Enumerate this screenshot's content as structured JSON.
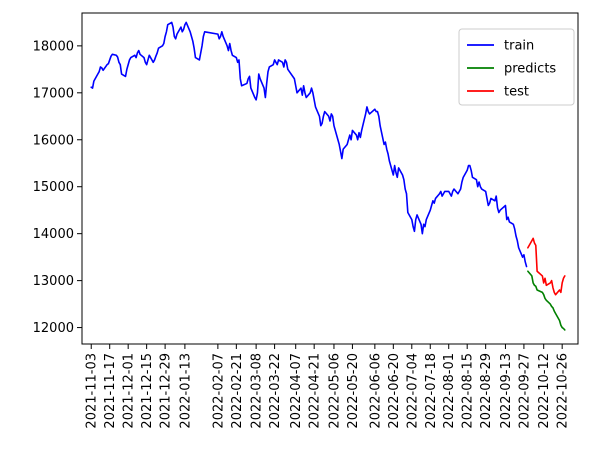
{
  "chart_data": {
    "type": "line",
    "title": "",
    "xlabel": "",
    "ylabel": "",
    "ylim": [
      11650,
      18700
    ],
    "xlim": [
      "2021-10-27",
      "2022-11-07"
    ],
    "grid": false,
    "legend": {
      "placement": "top-right",
      "entries": [
        "train",
        "predicts",
        "test"
      ]
    },
    "yticks": [
      12000,
      13000,
      14000,
      15000,
      16000,
      17000,
      18000
    ],
    "xticks": [
      "2021-11-03",
      "2021-11-17",
      "2021-12-01",
      "2021-12-15",
      "2021-12-29",
      "2022-01-13",
      "2022-02-07",
      "2022-02-21",
      "2022-03-08",
      "2022-03-22",
      "2022-04-07",
      "2022-04-21",
      "2022-05-06",
      "2022-05-20",
      "2022-06-06",
      "2022-06-20",
      "2022-07-04",
      "2022-07-18",
      "2022-08-01",
      "2022-08-15",
      "2022-08-29",
      "2022-09-13",
      "2022-09-27",
      "2022-10-12",
      "2022-10-26"
    ],
    "series": [
      {
        "name": "train",
        "color": "#0000ff",
        "points": [
          [
            "2021-11-03",
            17120
          ],
          [
            "2021-11-04",
            17100
          ],
          [
            "2021-11-05",
            17250
          ],
          [
            "2021-11-08",
            17400
          ],
          [
            "2021-11-09",
            17450
          ],
          [
            "2021-11-10",
            17550
          ],
          [
            "2021-11-11",
            17530
          ],
          [
            "2021-11-12",
            17480
          ],
          [
            "2021-11-15",
            17600
          ],
          [
            "2021-11-16",
            17620
          ],
          [
            "2021-11-17",
            17700
          ],
          [
            "2021-11-18",
            17780
          ],
          [
            "2021-11-19",
            17820
          ],
          [
            "2021-11-22",
            17800
          ],
          [
            "2021-11-23",
            17760
          ],
          [
            "2021-11-24",
            17650
          ],
          [
            "2021-11-25",
            17600
          ],
          [
            "2021-11-26",
            17400
          ],
          [
            "2021-11-29",
            17350
          ],
          [
            "2021-11-30",
            17500
          ],
          [
            "2021-12-01",
            17600
          ],
          [
            "2021-12-02",
            17700
          ],
          [
            "2021-12-03",
            17750
          ],
          [
            "2021-12-06",
            17800
          ],
          [
            "2021-12-07",
            17750
          ],
          [
            "2021-12-08",
            17850
          ],
          [
            "2021-12-09",
            17900
          ],
          [
            "2021-12-10",
            17820
          ],
          [
            "2021-12-13",
            17750
          ],
          [
            "2021-12-14",
            17650
          ],
          [
            "2021-12-15",
            17600
          ],
          [
            "2021-12-16",
            17700
          ],
          [
            "2021-12-17",
            17800
          ],
          [
            "2021-12-20",
            17650
          ],
          [
            "2021-12-21",
            17700
          ],
          [
            "2021-12-22",
            17780
          ],
          [
            "2021-12-23",
            17850
          ],
          [
            "2021-12-24",
            17950
          ],
          [
            "2021-12-27",
            18000
          ],
          [
            "2021-12-28",
            18050
          ],
          [
            "2021-12-29",
            18200
          ],
          [
            "2021-12-30",
            18300
          ],
          [
            "2021-12-31",
            18450
          ],
          [
            "2022-01-03",
            18500
          ],
          [
            "2022-01-04",
            18400
          ],
          [
            "2022-01-05",
            18200
          ],
          [
            "2022-01-06",
            18150
          ],
          [
            "2022-01-07",
            18250
          ],
          [
            "2022-01-10",
            18400
          ],
          [
            "2022-01-11",
            18300
          ],
          [
            "2022-01-12",
            18350
          ],
          [
            "2022-01-13",
            18450
          ],
          [
            "2022-01-14",
            18500
          ],
          [
            "2022-01-17",
            18300
          ],
          [
            "2022-01-18",
            18200
          ],
          [
            "2022-01-19",
            18100
          ],
          [
            "2022-01-20",
            17950
          ],
          [
            "2022-01-21",
            17750
          ],
          [
            "2022-01-24",
            17700
          ],
          [
            "2022-01-25",
            17850
          ],
          [
            "2022-01-26",
            18000
          ],
          [
            "2022-01-27",
            18200
          ],
          [
            "2022-01-28",
            18300
          ],
          [
            "2022-02-07",
            18250
          ],
          [
            "2022-02-08",
            18150
          ],
          [
            "2022-02-09",
            18200
          ],
          [
            "2022-02-10",
            18300
          ],
          [
            "2022-02-11",
            18200
          ],
          [
            "2022-02-14",
            18000
          ],
          [
            "2022-02-15",
            17900
          ],
          [
            "2022-02-16",
            18050
          ],
          [
            "2022-02-17",
            17900
          ],
          [
            "2022-02-18",
            17800
          ],
          [
            "2022-02-21",
            17750
          ],
          [
            "2022-02-22",
            17650
          ],
          [
            "2022-02-23",
            17700
          ],
          [
            "2022-02-24",
            17300
          ],
          [
            "2022-02-25",
            17150
          ],
          [
            "2022-03-01",
            17200
          ],
          [
            "2022-03-02",
            17300
          ],
          [
            "2022-03-03",
            17350
          ],
          [
            "2022-03-04",
            17100
          ],
          [
            "2022-03-07",
            16900
          ],
          [
            "2022-03-08",
            16850
          ],
          [
            "2022-03-09",
            17000
          ],
          [
            "2022-03-10",
            17400
          ],
          [
            "2022-03-11",
            17300
          ],
          [
            "2022-03-14",
            17100
          ],
          [
            "2022-03-15",
            16900
          ],
          [
            "2022-03-16",
            17200
          ],
          [
            "2022-03-17",
            17450
          ],
          [
            "2022-03-18",
            17550
          ],
          [
            "2022-03-21",
            17600
          ],
          [
            "2022-03-22",
            17700
          ],
          [
            "2022-03-23",
            17650
          ],
          [
            "2022-03-24",
            17600
          ],
          [
            "2022-03-25",
            17700
          ],
          [
            "2022-03-28",
            17650
          ],
          [
            "2022-03-29",
            17550
          ],
          [
            "2022-03-30",
            17700
          ],
          [
            "2022-03-31",
            17650
          ],
          [
            "2022-04-01",
            17500
          ],
          [
            "2022-04-06",
            17300
          ],
          [
            "2022-04-07",
            17150
          ],
          [
            "2022-04-08",
            17000
          ],
          [
            "2022-04-11",
            17100
          ],
          [
            "2022-04-12",
            16950
          ],
          [
            "2022-04-13",
            17150
          ],
          [
            "2022-04-14",
            17000
          ],
          [
            "2022-04-15",
            16900
          ],
          [
            "2022-04-18",
            17000
          ],
          [
            "2022-04-19",
            17100
          ],
          [
            "2022-04-20",
            17000
          ],
          [
            "2022-04-21",
            16850
          ],
          [
            "2022-04-22",
            16700
          ],
          [
            "2022-04-25",
            16500
          ],
          [
            "2022-04-26",
            16300
          ],
          [
            "2022-04-27",
            16350
          ],
          [
            "2022-04-28",
            16500
          ],
          [
            "2022-04-29",
            16600
          ],
          [
            "2022-05-02",
            16500
          ],
          [
            "2022-05-03",
            16400
          ],
          [
            "2022-05-04",
            16550
          ],
          [
            "2022-05-05",
            16500
          ],
          [
            "2022-05-06",
            16300
          ],
          [
            "2022-05-09",
            16000
          ],
          [
            "2022-05-10",
            15900
          ],
          [
            "2022-05-11",
            15750
          ],
          [
            "2022-05-12",
            15600
          ],
          [
            "2022-05-13",
            15800
          ],
          [
            "2022-05-16",
            15900
          ],
          [
            "2022-05-17",
            16000
          ],
          [
            "2022-05-18",
            16100
          ],
          [
            "2022-05-19",
            16000
          ],
          [
            "2022-05-20",
            16200
          ],
          [
            "2022-05-23",
            16100
          ],
          [
            "2022-05-24",
            16000
          ],
          [
            "2022-05-25",
            16150
          ],
          [
            "2022-05-26",
            16050
          ],
          [
            "2022-05-27",
            16200
          ],
          [
            "2022-05-30",
            16550
          ],
          [
            "2022-05-31",
            16700
          ],
          [
            "2022-06-01",
            16600
          ],
          [
            "2022-06-02",
            16550
          ],
          [
            "2022-06-06",
            16650
          ],
          [
            "2022-06-07",
            16600
          ],
          [
            "2022-06-08",
            16600
          ],
          [
            "2022-06-09",
            16500
          ],
          [
            "2022-06-10",
            16300
          ],
          [
            "2022-06-13",
            15900
          ],
          [
            "2022-06-14",
            15950
          ],
          [
            "2022-06-15",
            15800
          ],
          [
            "2022-06-16",
            15700
          ],
          [
            "2022-06-17",
            15550
          ],
          [
            "2022-06-20",
            15250
          ],
          [
            "2022-06-21",
            15450
          ],
          [
            "2022-06-22",
            15300
          ],
          [
            "2022-06-23",
            15200
          ],
          [
            "2022-06-24",
            15400
          ],
          [
            "2022-06-27",
            15250
          ],
          [
            "2022-06-28",
            15150
          ],
          [
            "2022-06-29",
            14950
          ],
          [
            "2022-06-30",
            14850
          ],
          [
            "2022-07-01",
            14450
          ],
          [
            "2022-07-04",
            14300
          ],
          [
            "2022-07-05",
            14150
          ],
          [
            "2022-07-06",
            14050
          ],
          [
            "2022-07-07",
            14300
          ],
          [
            "2022-07-08",
            14400
          ],
          [
            "2022-07-11",
            14200
          ],
          [
            "2022-07-12",
            14000
          ],
          [
            "2022-07-13",
            14200
          ],
          [
            "2022-07-14",
            14150
          ],
          [
            "2022-07-15",
            14300
          ],
          [
            "2022-07-18",
            14500
          ],
          [
            "2022-07-19",
            14600
          ],
          [
            "2022-07-20",
            14700
          ],
          [
            "2022-07-21",
            14650
          ],
          [
            "2022-07-22",
            14750
          ],
          [
            "2022-07-25",
            14850
          ],
          [
            "2022-07-26",
            14900
          ],
          [
            "2022-07-27",
            14800
          ],
          [
            "2022-07-28",
            14850
          ],
          [
            "2022-07-29",
            14900
          ],
          [
            "2022-08-01",
            14900
          ],
          [
            "2022-08-02",
            14850
          ],
          [
            "2022-08-03",
            14800
          ],
          [
            "2022-08-04",
            14900
          ],
          [
            "2022-08-05",
            14950
          ],
          [
            "2022-08-08",
            14850
          ],
          [
            "2022-08-09",
            14900
          ],
          [
            "2022-08-10",
            14950
          ],
          [
            "2022-08-11",
            15100
          ],
          [
            "2022-08-12",
            15200
          ],
          [
            "2022-08-15",
            15350
          ],
          [
            "2022-08-16",
            15450
          ],
          [
            "2022-08-17",
            15450
          ],
          [
            "2022-08-18",
            15350
          ],
          [
            "2022-08-19",
            15200
          ],
          [
            "2022-08-22",
            15150
          ],
          [
            "2022-08-23",
            15000
          ],
          [
            "2022-08-24",
            15100
          ],
          [
            "2022-08-25",
            15000
          ],
          [
            "2022-08-26",
            14950
          ],
          [
            "2022-08-29",
            14900
          ],
          [
            "2022-08-30",
            14750
          ],
          [
            "2022-08-31",
            14600
          ],
          [
            "2022-09-01",
            14650
          ],
          [
            "2022-09-02",
            14750
          ],
          [
            "2022-09-05",
            14700
          ],
          [
            "2022-09-06",
            14800
          ],
          [
            "2022-09-07",
            14550
          ],
          [
            "2022-09-08",
            14450
          ],
          [
            "2022-09-09",
            14500
          ],
          [
            "2022-09-13",
            14600
          ],
          [
            "2022-09-14",
            14300
          ],
          [
            "2022-09-15",
            14350
          ],
          [
            "2022-09-16",
            14250
          ],
          [
            "2022-09-19",
            14200
          ],
          [
            "2022-09-20",
            14100
          ],
          [
            "2022-09-21",
            13950
          ],
          [
            "2022-09-22",
            13850
          ],
          [
            "2022-09-23",
            13700
          ],
          [
            "2022-09-26",
            13500
          ],
          [
            "2022-09-27",
            13550
          ],
          [
            "2022-09-28",
            13400
          ],
          [
            "2022-09-29",
            13300
          ]
        ]
      },
      {
        "name": "predicts",
        "color": "#008000",
        "points": [
          [
            "2022-09-30",
            13200
          ],
          [
            "2022-10-03",
            13100
          ],
          [
            "2022-10-04",
            12950
          ],
          [
            "2022-10-05",
            12900
          ],
          [
            "2022-10-06",
            12880
          ],
          [
            "2022-10-07",
            12800
          ],
          [
            "2022-10-11",
            12750
          ],
          [
            "2022-10-12",
            12700
          ],
          [
            "2022-10-13",
            12620
          ],
          [
            "2022-10-14",
            12580
          ],
          [
            "2022-10-17",
            12500
          ],
          [
            "2022-10-18",
            12450
          ],
          [
            "2022-10-19",
            12420
          ],
          [
            "2022-10-20",
            12350
          ],
          [
            "2022-10-21",
            12300
          ],
          [
            "2022-10-24",
            12150
          ],
          [
            "2022-10-25",
            12050
          ],
          [
            "2022-10-26",
            12000
          ],
          [
            "2022-10-27",
            11980
          ],
          [
            "2022-10-28",
            11950
          ]
        ]
      },
      {
        "name": "test",
        "color": "#ff0000",
        "points": [
          [
            "2022-09-30",
            13700
          ],
          [
            "2022-10-03",
            13850
          ],
          [
            "2022-10-04",
            13900
          ],
          [
            "2022-10-05",
            13800
          ],
          [
            "2022-10-06",
            13750
          ],
          [
            "2022-10-07",
            13200
          ],
          [
            "2022-10-11",
            13100
          ],
          [
            "2022-10-12",
            12950
          ],
          [
            "2022-10-13",
            13050
          ],
          [
            "2022-10-14",
            12900
          ],
          [
            "2022-10-17",
            12950
          ],
          [
            "2022-10-18",
            13000
          ],
          [
            "2022-10-19",
            12850
          ],
          [
            "2022-10-20",
            12750
          ],
          [
            "2022-10-21",
            12700
          ],
          [
            "2022-10-24",
            12800
          ],
          [
            "2022-10-25",
            12750
          ],
          [
            "2022-10-26",
            12950
          ],
          [
            "2022-10-27",
            13050
          ],
          [
            "2022-10-28",
            13100
          ]
        ]
      }
    ]
  }
}
